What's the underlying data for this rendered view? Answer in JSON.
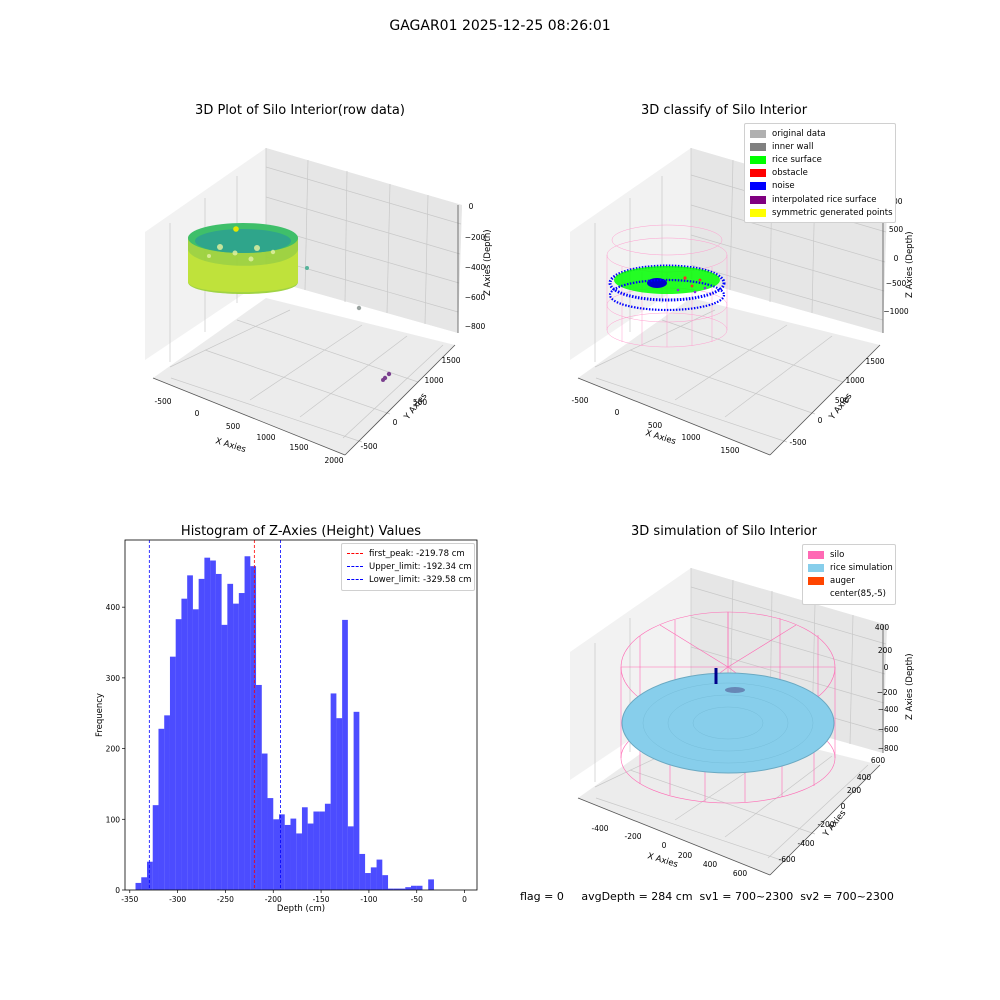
{
  "suptitle": "GAGAR01 2025-12-25 08:26:01",
  "footer": "flag = 0     avgDepth = 284 cm  sv1 = 700~2300  sv2 = 700~2300",
  "panels": [
    {
      "title": "3D Plot of Silo Interior(row data)",
      "type": "scatter3d",
      "xlabel": "X Axies",
      "ylabel": "Y Axies",
      "zlabel": "Z Axies (Depth)",
      "xticks": [
        "-500",
        "0",
        "500",
        "1000",
        "1500",
        "2000"
      ],
      "yticks": [
        "-500",
        "0",
        "500",
        "1000",
        "1500"
      ],
      "zticks": [
        "0",
        "−200",
        "−400",
        "−600",
        "−800"
      ]
    },
    {
      "title": "3D classify of Silo Interior",
      "type": "scatter3d",
      "xlabel": "X Axies",
      "ylabel": "Y Axies",
      "zlabel": "Z Axies (Depth)",
      "xticks": [
        "-500",
        "0",
        "500",
        "1000",
        "1500"
      ],
      "yticks": [
        "-500",
        "0",
        "500",
        "1000",
        "1500"
      ],
      "zticks": [
        "1000",
        "500",
        "0",
        "−500",
        "−1000"
      ],
      "legend": [
        {
          "label": "original data",
          "color": "#b0b0b0"
        },
        {
          "label": "inner wall",
          "color": "#808080"
        },
        {
          "label": "rice surface",
          "color": "#00ff00"
        },
        {
          "label": "obstacle",
          "color": "#ff0000"
        },
        {
          "label": "noise",
          "color": "#0000ff"
        },
        {
          "label": "interpolated rice surface",
          "color": "#800080"
        },
        {
          "label": "symmetric generated points",
          "color": "#ffff00"
        }
      ]
    },
    {
      "title": "Histogram of Z-Axies (Height) Values",
      "type": "histogram",
      "xlabel": "Depth (cm)",
      "ylabel": "Frequency",
      "xticks": [
        "-350",
        "-300",
        "-250",
        "-200",
        "-150",
        "-100",
        "-50",
        "0"
      ],
      "yticks": [
        "0",
        "100",
        "200",
        "300",
        "400"
      ],
      "legend": [
        {
          "label": "first_peak: -219.78 cm",
          "color": "#ff0000"
        },
        {
          "label": "Upper_limit: -192.34 cm",
          "color": "#0000ff"
        },
        {
          "label": "Lower_limit: -329.58 cm",
          "color": "#0000ff"
        }
      ]
    },
    {
      "title": "3D simulation of Silo Interior",
      "type": "surface3d",
      "xlabel": "X Axies",
      "ylabel": "Y Axies",
      "zlabel": "Z Axies (Depth)",
      "xticks": [
        "-400",
        "-200",
        "0",
        "200",
        "400",
        "600"
      ],
      "yticks": [
        "-600",
        "-400",
        "-200",
        "0",
        "200",
        "400",
        "600"
      ],
      "zticks": [
        "400",
        "200",
        "0",
        "−200",
        "−400",
        "−600",
        "−800"
      ],
      "legend": [
        {
          "label": "silo",
          "color": "#ff69b4"
        },
        {
          "label": "rice simulation",
          "color": "#87ceeb"
        },
        {
          "label": "auger",
          "color": "#ff4500"
        },
        {
          "label": "center(85,-5)",
          "color": "#ffffff"
        }
      ]
    }
  ],
  "chart_data": {
    "type": "bar",
    "title": "Histogram of Z-Axies (Height) Values",
    "xlabel": "Depth (cm)",
    "ylabel": "Frequency",
    "xlim": [
      -355,
      13
    ],
    "ylim": [
      0,
      495
    ],
    "bin_width": 6,
    "bins": [
      {
        "x0": -344,
        "count": 10
      },
      {
        "x0": -338,
        "count": 18
      },
      {
        "x0": -332,
        "count": 40
      },
      {
        "x0": -326,
        "count": 120
      },
      {
        "x0": -320,
        "count": 228
      },
      {
        "x0": -314,
        "count": 247
      },
      {
        "x0": -308,
        "count": 330
      },
      {
        "x0": -302,
        "count": 383
      },
      {
        "x0": -296,
        "count": 412
      },
      {
        "x0": -290,
        "count": 445
      },
      {
        "x0": -284,
        "count": 397
      },
      {
        "x0": -278,
        "count": 440
      },
      {
        "x0": -272,
        "count": 470
      },
      {
        "x0": -266,
        "count": 466
      },
      {
        "x0": -260,
        "count": 447
      },
      {
        "x0": -254,
        "count": 375
      },
      {
        "x0": -248,
        "count": 433
      },
      {
        "x0": -242,
        "count": 405
      },
      {
        "x0": -236,
        "count": 420
      },
      {
        "x0": -230,
        "count": 472
      },
      {
        "x0": -224,
        "count": 458
      },
      {
        "x0": -218,
        "count": 290
      },
      {
        "x0": -212,
        "count": 193
      },
      {
        "x0": -206,
        "count": 130
      },
      {
        "x0": -200,
        "count": 100
      },
      {
        "x0": -194,
        "count": 107
      },
      {
        "x0": -188,
        "count": 92
      },
      {
        "x0": -182,
        "count": 101
      },
      {
        "x0": -176,
        "count": 80
      },
      {
        "x0": -170,
        "count": 117
      },
      {
        "x0": -164,
        "count": 94
      },
      {
        "x0": -158,
        "count": 111
      },
      {
        "x0": -152,
        "count": 111
      },
      {
        "x0": -146,
        "count": 122
      },
      {
        "x0": -140,
        "count": 278
      },
      {
        "x0": -134,
        "count": 243
      },
      {
        "x0": -128,
        "count": 382
      },
      {
        "x0": -122,
        "count": 90
      },
      {
        "x0": -116,
        "count": 252
      },
      {
        "x0": -110,
        "count": 51
      },
      {
        "x0": -104,
        "count": 24
      },
      {
        "x0": -98,
        "count": 32
      },
      {
        "x0": -92,
        "count": 43
      },
      {
        "x0": -86,
        "count": 21
      },
      {
        "x0": -80,
        "count": 2
      },
      {
        "x0": -74,
        "count": 2
      },
      {
        "x0": -68,
        "count": 2
      },
      {
        "x0": -62,
        "count": 4
      },
      {
        "x0": -56,
        "count": 6
      },
      {
        "x0": -50,
        "count": 6
      },
      {
        "x0": -44,
        "count": 0
      },
      {
        "x0": -38,
        "count": 15
      }
    ],
    "bar_color": "#0000ff",
    "vlines": [
      {
        "name": "first_peak",
        "x": -219.78,
        "color": "#ff0000"
      },
      {
        "name": "Upper_limit",
        "x": -192.34,
        "color": "#0000ff"
      },
      {
        "name": "Lower_limit",
        "x": -329.58,
        "color": "#0000ff"
      }
    ],
    "legend_position": "top-right",
    "grid": false
  }
}
